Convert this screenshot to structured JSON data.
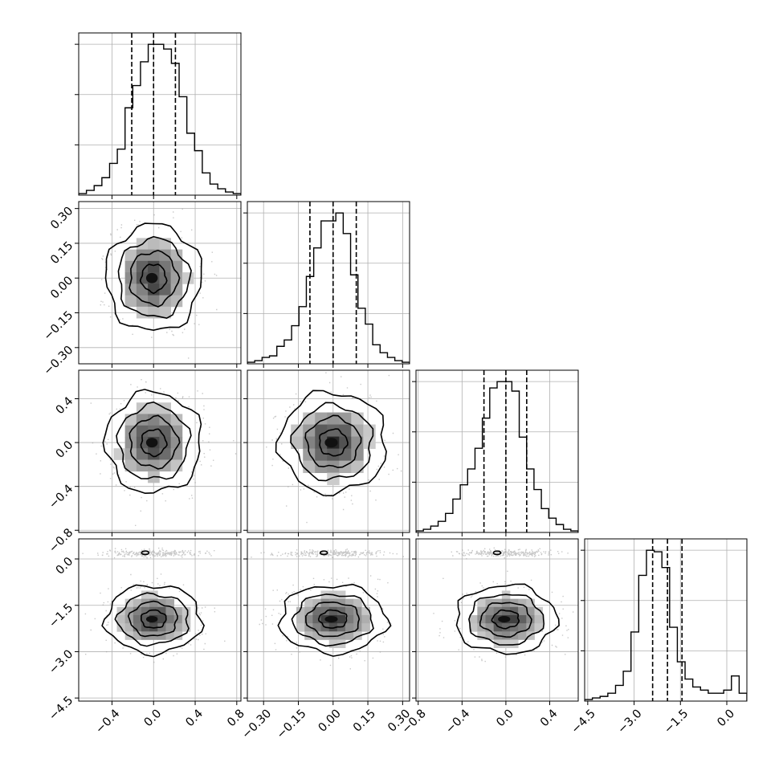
{
  "figure": {
    "kind": "corner-plot",
    "dimensions": 4,
    "grid": true,
    "quantile_lines": "dashed",
    "histogram_style": "step",
    "scatter_color": "#9a9a9a",
    "contour_levels": 4
  },
  "chart_data": {
    "type": "corner",
    "parameters": [
      {
        "index": 0,
        "range": [
          -0.72,
          0.84
        ],
        "ticks": [
          -0.4,
          0.0,
          0.4,
          0.8
        ],
        "tick_labels": [
          "−0.4",
          "0.0",
          "0.4",
          "0.8"
        ],
        "quantiles": [
          -0.21,
          0.0,
          0.21
        ],
        "hist": [
          0.01,
          0.03,
          0.06,
          0.11,
          0.2,
          0.29,
          0.55,
          0.69,
          0.84,
          0.95,
          0.95,
          0.92,
          0.83,
          0.62,
          0.39,
          0.28,
          0.14,
          0.07,
          0.04,
          0.02,
          0.01
        ]
      },
      {
        "index": 1,
        "range": [
          -0.37,
          0.33
        ],
        "ticks": [
          -0.3,
          -0.15,
          0.0,
          0.15,
          0.3
        ],
        "tick_labels": [
          "−0.30",
          "−0.15",
          "0.00",
          "0.15",
          "0.30"
        ],
        "quantiles": [
          -0.1,
          0.0,
          0.1
        ],
        "hist": [
          0.01,
          0.02,
          0.04,
          0.05,
          0.11,
          0.15,
          0.24,
          0.36,
          0.55,
          0.73,
          0.9,
          0.9,
          0.95,
          0.82,
          0.56,
          0.35,
          0.25,
          0.12,
          0.07,
          0.04,
          0.02,
          0.01
        ]
      },
      {
        "index": 2,
        "range": [
          -0.82,
          0.66
        ],
        "ticks": [
          -0.8,
          -0.4,
          0.0,
          0.4
        ],
        "tick_labels": [
          "−0.8",
          "−0.4",
          "0.0",
          "0.4"
        ],
        "quantiles": [
          -0.2,
          0.0,
          0.19
        ],
        "hist": [
          0.01,
          0.02,
          0.04,
          0.07,
          0.12,
          0.21,
          0.3,
          0.4,
          0.53,
          0.72,
          0.91,
          0.95,
          0.95,
          0.89,
          0.6,
          0.4,
          0.27,
          0.15,
          0.09,
          0.05,
          0.02,
          0.01
        ]
      },
      {
        "index": 3,
        "range": [
          -4.6,
          0.65
        ],
        "ticks": [
          -4.5,
          -3.0,
          -1.5,
          0.0
        ],
        "tick_labels": [
          "−4.5",
          "−3.0",
          "−1.5",
          "0.0"
        ],
        "quantiles": [
          -2.4,
          -1.92,
          -1.45
        ],
        "hist": [
          0.01,
          0.02,
          0.03,
          0.05,
          0.1,
          0.19,
          0.44,
          0.8,
          0.96,
          0.95,
          0.85,
          0.47,
          0.25,
          0.14,
          0.09,
          0.07,
          0.05,
          0.05,
          0.07,
          0.16,
          0.05
        ]
      }
    ],
    "pairs": [
      {
        "x": 0,
        "y": 1,
        "center": [
          0.0,
          0.0
        ],
        "spread": [
          0.2,
          0.1
        ],
        "outlier_mode": null
      },
      {
        "x": 0,
        "y": 2,
        "center": [
          0.0,
          0.0
        ],
        "spread": [
          0.2,
          0.2
        ],
        "outlier_mode": null
      },
      {
        "x": 1,
        "y": 2,
        "center": [
          0.0,
          0.0
        ],
        "spread": [
          0.1,
          0.2
        ],
        "outlier_mode": null
      },
      {
        "x": 0,
        "y": 3,
        "center": [
          0.0,
          -1.95
        ],
        "spread": [
          0.2,
          0.48
        ],
        "outlier_mode": 0.2
      },
      {
        "x": 1,
        "y": 3,
        "center": [
          0.0,
          -1.95
        ],
        "spread": [
          0.1,
          0.48
        ],
        "outlier_mode": 0.2
      },
      {
        "x": 2,
        "y": 3,
        "center": [
          0.0,
          -1.95
        ],
        "spread": [
          0.2,
          0.48
        ],
        "outlier_mode": 0.2
      }
    ],
    "contour_radii_sigma": [
      0.6,
      1.15,
      1.7,
      2.3
    ]
  }
}
